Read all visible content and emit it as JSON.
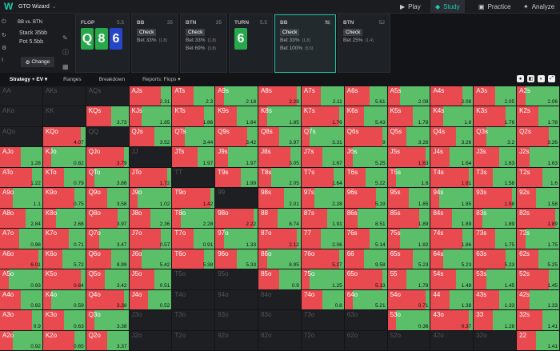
{
  "app": {
    "title": "GTO Wizard",
    "logo": "W"
  },
  "nav": [
    {
      "label": "Play",
      "icon": "play-icon"
    },
    {
      "label": "Study",
      "icon": "study-icon"
    },
    {
      "label": "Practice",
      "icon": "practice-icon"
    },
    {
      "label": "Analyze",
      "icon": "analyze-icon"
    }
  ],
  "sidebar": {
    "title": "BB vs. BTN",
    "stack": "Stack 35bb",
    "pot": "Pot 5.5bb",
    "change": "Change"
  },
  "streets": [
    {
      "label": "FLOP",
      "num": "5.5",
      "cards": [
        {
          "r": "Q",
          "c": "#27a84a"
        },
        {
          "r": "8",
          "c": "#27a84a"
        },
        {
          "r": "6",
          "c": "#2646c9"
        }
      ]
    },
    {
      "label": "BB",
      "num": "35",
      "l1": "Check",
      "l2": "Bet 33%",
      "l2s": "(1.8)"
    },
    {
      "label": "BTN",
      "num": "35",
      "l1": "Check",
      "l2": "Bet 33%",
      "l2s": "(1.8)",
      "l3": "Bet 69%",
      "l3s": "(3.8)"
    },
    {
      "label": "TURN",
      "num": "5.5",
      "cards": [
        {
          "r": "6",
          "c": "#27a84a"
        }
      ]
    },
    {
      "label": "BB",
      "num": "35",
      "l1": "Check",
      "l2": "Bet 33%",
      "l2s": "(1.8)",
      "l3": "Bet 100%",
      "l3s": "(5.5)"
    },
    {
      "label": "BTN",
      "num": "52",
      "l1": "Check",
      "l2": "Bet 25%",
      "l2s": "(1.4)"
    }
  ],
  "tabs": [
    "Strategy + EV",
    "Ranges",
    "Breakdown",
    "Reports: Flops"
  ],
  "grid": [
    [
      [
        "AA",
        ""
      ],
      [
        "AKs",
        ""
      ],
      [
        "AQs",
        ""
      ],
      [
        "AJs",
        "2.31"
      ],
      [
        "ATs",
        "2.3"
      ],
      [
        "A9s",
        "2.18"
      ],
      [
        "A8s",
        "2.29"
      ],
      [
        "A7s",
        "2.11"
      ],
      [
        "A6s",
        "5.61"
      ],
      [
        "A5s",
        "2.08"
      ],
      [
        "A4s",
        "2.08"
      ],
      [
        "A3s",
        "2.05"
      ],
      [
        "A2s",
        "2.06"
      ]
    ],
    [
      [
        "AKo",
        ""
      ],
      [
        "KK",
        ""
      ],
      [
        "KQs",
        "3.73"
      ],
      [
        "KJs",
        "1.85"
      ],
      [
        "KTs",
        "1.86"
      ],
      [
        "K9s",
        "1.84"
      ],
      [
        "K8s",
        "1.85"
      ],
      [
        "K7s",
        "1.76"
      ],
      [
        "K6s",
        "5.43"
      ],
      [
        "K5s",
        "1.78"
      ],
      [
        "K4s",
        "1.8"
      ],
      [
        "K3s",
        "1.76"
      ],
      [
        "K2s",
        "1.78"
      ]
    ],
    [
      [
        "AQo",
        ""
      ],
      [
        "KQo",
        "4.07"
      ],
      [
        "QQ",
        ""
      ],
      [
        "QJs",
        "3.52"
      ],
      [
        "QTs",
        "3.44"
      ],
      [
        "Q9s",
        "3.42"
      ],
      [
        "Q8s",
        "3.97"
      ],
      [
        "Q7s",
        "3.31"
      ],
      [
        "Q6s",
        "9"
      ],
      [
        "Q5s",
        "3.26"
      ],
      [
        "Q4s",
        "3.26"
      ],
      [
        "Q3s",
        "3.2"
      ],
      [
        "Q2s",
        "3.26"
      ]
    ],
    [
      [
        "AJo",
        "1.28"
      ],
      [
        "KJo",
        "0.82"
      ],
      [
        "QJo",
        "3.79"
      ],
      [
        "JJ",
        ""
      ],
      [
        "JTs",
        "1.97"
      ],
      [
        "J9s",
        "1.97"
      ],
      [
        "J8s",
        "3.05"
      ],
      [
        "J7s",
        "1.67"
      ],
      [
        "J6s",
        "5.25"
      ],
      [
        "J5s",
        "1.63"
      ],
      [
        "J4s",
        "1.64"
      ],
      [
        "J3s",
        "1.63"
      ],
      [
        "J2s",
        "1.63"
      ]
    ],
    [
      [
        "ATo",
        "1.22"
      ],
      [
        "KTo",
        "0.79"
      ],
      [
        "QTo",
        "3.86"
      ],
      [
        "JTo",
        "1.72"
      ],
      [
        "TT",
        ""
      ],
      [
        "T9s",
        "1.99"
      ],
      [
        "T8s",
        "2.05"
      ],
      [
        "T7s",
        "1.64"
      ],
      [
        "T6s",
        "5.22"
      ],
      [
        "T5s",
        "1.6"
      ],
      [
        "T4s",
        "1.61"
      ],
      [
        "T3s",
        "1.58"
      ],
      [
        "T2s",
        "1.6"
      ]
    ],
    [
      [
        "A9o",
        "1.1"
      ],
      [
        "K9o",
        "0.75"
      ],
      [
        "Q9o",
        "3.58"
      ],
      [
        "J9o",
        "1.02"
      ],
      [
        "T9o",
        "1.42"
      ],
      [
        "99",
        ""
      ],
      [
        "98s",
        "2.01"
      ],
      [
        "97s",
        "2.28"
      ],
      [
        "96s",
        "5.19"
      ],
      [
        "95s",
        "1.85"
      ],
      [
        "94s",
        "1.85"
      ],
      [
        "93s",
        "1.58"
      ],
      [
        "92s",
        "1.58"
      ]
    ],
    [
      [
        "A8o",
        "2.84"
      ],
      [
        "K8o",
        "2.68"
      ],
      [
        "Q8o",
        "3.97"
      ],
      [
        "J8o",
        "2.36"
      ],
      [
        "T8o",
        "2.28"
      ],
      [
        "98o",
        "2.22"
      ],
      [
        "88",
        "8.74"
      ],
      [
        "87s",
        "1.91"
      ],
      [
        "86s",
        "8.51"
      ],
      [
        "85s",
        "1.89"
      ],
      [
        "84s",
        "1.89"
      ],
      [
        "83s",
        "1.89"
      ],
      [
        "82s",
        "1.89"
      ]
    ],
    [
      [
        "A7o",
        "0.98"
      ],
      [
        "K7o",
        "0.71"
      ],
      [
        "Q7o",
        "3.47"
      ],
      [
        "J7o",
        "0.57"
      ],
      [
        "T7o",
        "0.91"
      ],
      [
        "97o",
        "1.33"
      ],
      [
        "87o",
        "2.12"
      ],
      [
        "77",
        "2.06"
      ],
      [
        "76s",
        "5.14"
      ],
      [
        "75s",
        "1.82"
      ],
      [
        "74s",
        "1.86"
      ],
      [
        "73s",
        "1.75"
      ],
      [
        "72s",
        "1.75"
      ]
    ],
    [
      [
        "A6o",
        "6.01"
      ],
      [
        "K6o",
        "5.72"
      ],
      [
        "Q6o",
        "8.99"
      ],
      [
        "J6o",
        "5.42"
      ],
      [
        "T6o",
        "5.38"
      ],
      [
        "96o",
        "5.33"
      ],
      [
        "86o",
        "8.95"
      ],
      [
        "76o",
        "5.27"
      ],
      [
        "66",
        "9.58"
      ],
      [
        "65s",
        "5.23"
      ],
      [
        "64s",
        "5.23"
      ],
      [
        "63s",
        "5.23"
      ],
      [
        "62s",
        "5.25"
      ]
    ],
    [
      [
        "A5o",
        "0.93"
      ],
      [
        "K5o",
        "0.64"
      ],
      [
        "Q5o",
        "3.42"
      ],
      [
        "J5o",
        "0.51"
      ],
      [
        "T5o",
        ""
      ],
      [
        "95o",
        ""
      ],
      [
        "85o",
        "0.9"
      ],
      [
        "75o",
        "1.25"
      ],
      [
        "65o",
        "5.13"
      ],
      [
        "55",
        "1.78"
      ],
      [
        "54s",
        "1.48"
      ],
      [
        "53s",
        "1.45"
      ],
      [
        "52s",
        "1.45"
      ]
    ],
    [
      [
        "A4o",
        "0.92"
      ],
      [
        "K4o",
        "0.59"
      ],
      [
        "Q4o",
        "3.38"
      ],
      [
        "J4o",
        "0.52"
      ],
      [
        "T4o",
        ""
      ],
      [
        "94o",
        ""
      ],
      [
        "84o",
        ""
      ],
      [
        "74o",
        "0.8"
      ],
      [
        "64o",
        "5.21"
      ],
      [
        "54o",
        "0.71"
      ],
      [
        "44",
        "1.38"
      ],
      [
        "43s",
        "1.33"
      ],
      [
        "42s",
        "1.33"
      ]
    ],
    [
      [
        "A3o",
        "0.9"
      ],
      [
        "K3o",
        "0.63"
      ],
      [
        "Q3o",
        "3.38"
      ],
      [
        "J3o",
        ""
      ],
      [
        "T3o",
        ""
      ],
      [
        "93o",
        ""
      ],
      [
        "83o",
        ""
      ],
      [
        "73o",
        ""
      ],
      [
        "63o",
        ""
      ],
      [
        "53o",
        "0.36"
      ],
      [
        "43o",
        "0.37"
      ],
      [
        "33",
        "1.28"
      ],
      [
        "32s",
        "1.41"
      ]
    ],
    [
      [
        "A2o",
        "0.92"
      ],
      [
        "K2o",
        "0.65"
      ],
      [
        "Q2o",
        "3.37"
      ],
      [
        "J2o",
        ""
      ],
      [
        "T2o",
        ""
      ],
      [
        "92o",
        ""
      ],
      [
        "82o",
        ""
      ],
      [
        "72o",
        ""
      ],
      [
        "62o",
        ""
      ],
      [
        "52o",
        ""
      ],
      [
        "42o",
        ""
      ],
      [
        "32o",
        ""
      ],
      [
        "22",
        "1.41"
      ]
    ]
  ],
  "colors": {
    "green": "#5bbf6a",
    "red": "#e84a4f",
    "darkred": "#b02a2f",
    "empty": "#1d1f23"
  }
}
